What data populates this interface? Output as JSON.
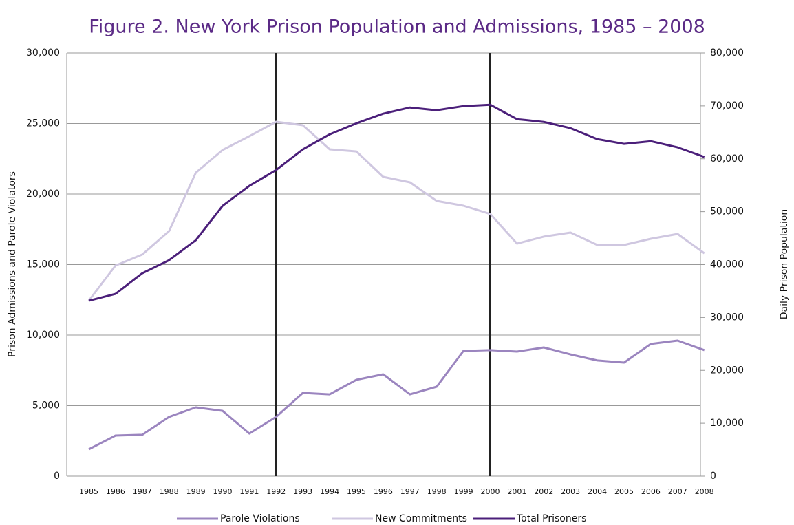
{
  "chart_data": {
    "type": "line",
    "title": "Figure 2.  New York Prison Population and Admissions, 1985 – 2008",
    "y_label": "Prison Admissions and Parole Violators",
    "y2_label": "Daily Prison Population",
    "categories": [
      "1985",
      "1986",
      "1987",
      "1988",
      "1989",
      "1990",
      "1991",
      "1992",
      "1993",
      "1994",
      "1995",
      "1996",
      "1997",
      "1998",
      "1999",
      "2000",
      "2001",
      "2002",
      "2003",
      "2004",
      "2005",
      "2006",
      "2007",
      "2008"
    ],
    "series": [
      {
        "name": "Parole Violations",
        "color": "#9b85bf",
        "values": [
          1900,
          2880,
          2930,
          4200,
          4880,
          4630,
          3020,
          4200,
          5900,
          5800,
          6830,
          7220,
          5800,
          6340,
          8880,
          8930,
          8830,
          9120,
          8630,
          8200,
          8050,
          9370,
          9610,
          8930
        ]
      },
      {
        "name": "New Commitments",
        "color": "#cfc7e0",
        "values": [
          12440,
          14930,
          15710,
          17370,
          21510,
          23120,
          24100,
          25120,
          24880,
          23170,
          23020,
          21220,
          20830,
          19510,
          19170,
          18590,
          16490,
          16980,
          17270,
          16390,
          16390,
          16830,
          17170,
          15800
        ]
      },
      {
        "name": "Total Prisoners",
        "color": "#4b1f7a",
        "axis": "y2",
        "values": [
          33160,
          34460,
          38360,
          40830,
          44600,
          51100,
          54880,
          57870,
          61770,
          64630,
          66710,
          68530,
          69700,
          69180,
          69960,
          70220,
          67490,
          66970,
          65800,
          63720,
          62810,
          63330,
          62160,
          60340
        ]
      }
    ],
    "reference_lines": [
      1992,
      2000
    ],
    "ylim": [
      0,
      30000
    ],
    "yticks": [
      0,
      {
        "value": 5000,
        "label": "5,000"
      },
      {
        "value": 10000,
        "label": "10,000"
      },
      {
        "value": 15000,
        "label": "15,000"
      },
      {
        "value": 20000,
        "label": "20,000"
      },
      {
        "value": 25000,
        "label": "25,000"
      },
      {
        "value": 30000,
        "label": "30,000"
      }
    ],
    "y2lim": [
      0,
      80000
    ],
    "y2ticks": [
      0,
      {
        "value": 10000,
        "label": "10,000"
      },
      {
        "value": 20000,
        "label": "20,000"
      },
      {
        "value": 30000,
        "label": "30,000"
      },
      {
        "value": 40000,
        "label": "40,000"
      },
      {
        "value": 50000,
        "label": "50,000"
      },
      {
        "value": 60000,
        "label": "60,000"
      },
      {
        "value": 70000,
        "label": "70,000"
      },
      {
        "value": 80000,
        "label": "80,000"
      }
    ],
    "grid": true,
    "legend": "bottom"
  }
}
